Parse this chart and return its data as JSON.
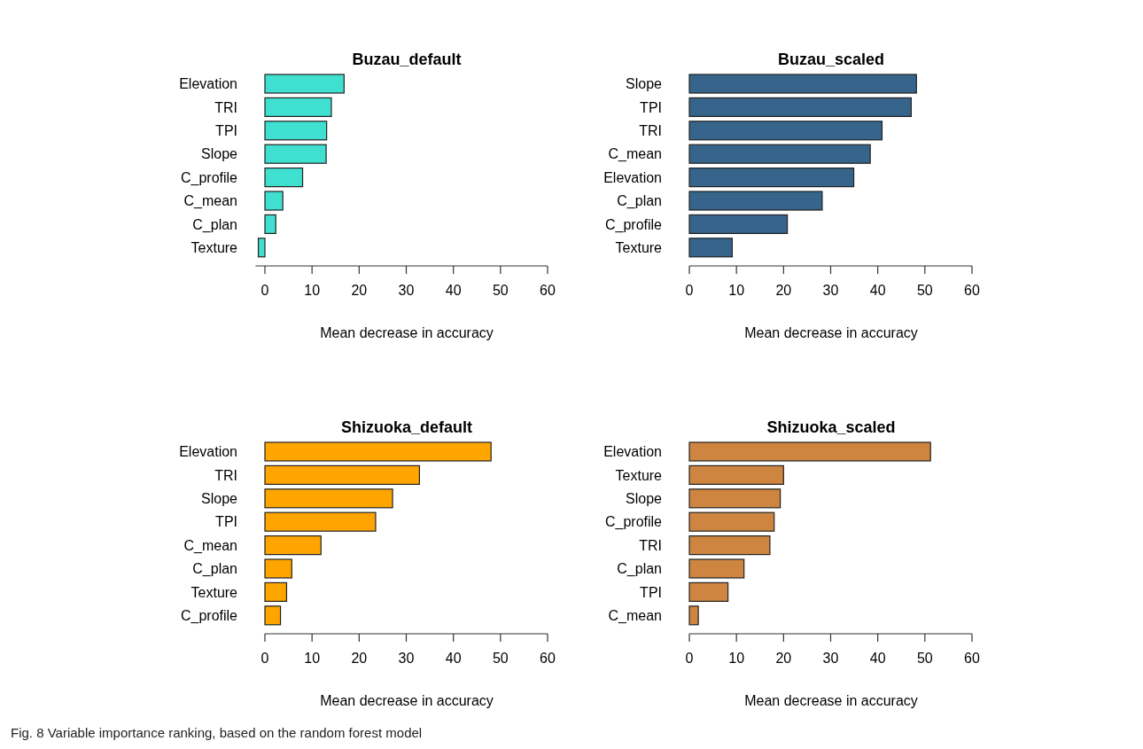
{
  "chart_data": [
    {
      "type": "bar",
      "orientation": "horizontal",
      "title": "Buzau_default",
      "xlabel": "Mean decrease in accuracy",
      "categories": [
        "Elevation",
        "TRI",
        "TPI",
        "Slope",
        "C_profile",
        "C_mean",
        "C_plan",
        "Texture"
      ],
      "values": [
        16.8,
        14.1,
        13.1,
        13.0,
        8.0,
        3.8,
        2.3,
        -1.4
      ],
      "color": "#40e0d0",
      "xlim": [
        -2,
        60
      ],
      "xticks": [
        0,
        10,
        20,
        30,
        40,
        50,
        60
      ],
      "grid": false
    },
    {
      "type": "bar",
      "orientation": "horizontal",
      "title": "Buzau_scaled",
      "xlabel": "Mean decrease in accuracy",
      "categories": [
        "Slope",
        "TPI",
        "TRI",
        "C_mean",
        "Elevation",
        "C_plan",
        "C_profile",
        "Texture"
      ],
      "values": [
        48.2,
        47.1,
        40.9,
        38.4,
        34.9,
        28.2,
        20.8,
        9.1
      ],
      "color": "#36648b",
      "xlim": [
        0,
        60
      ],
      "xticks": [
        0,
        10,
        20,
        30,
        40,
        50,
        60
      ],
      "grid": false
    },
    {
      "type": "bar",
      "orientation": "horizontal",
      "title": "Shizuoka_default",
      "xlabel": "Mean decrease in accuracy",
      "categories": [
        "Elevation",
        "TRI",
        "Slope",
        "TPI",
        "C_mean",
        "C_plan",
        "Texture",
        "C_profile"
      ],
      "values": [
        48.0,
        32.8,
        27.1,
        23.5,
        11.9,
        5.7,
        4.6,
        3.3
      ],
      "color": "#ffa500",
      "xlim": [
        0,
        60
      ],
      "xticks": [
        0,
        10,
        20,
        30,
        40,
        50,
        60
      ],
      "grid": false
    },
    {
      "type": "bar",
      "orientation": "horizontal",
      "title": "Shizuoka_scaled",
      "xlabel": "Mean decrease in accuracy",
      "categories": [
        "Elevation",
        "Texture",
        "Slope",
        "C_profile",
        "TRI",
        "C_plan",
        "TPI",
        "C_mean"
      ],
      "values": [
        51.2,
        20.0,
        19.3,
        18.0,
        17.1,
        11.6,
        8.2,
        1.9
      ],
      "color": "#cd853f",
      "xlim": [
        0,
        60
      ],
      "xticks": [
        0,
        10,
        20,
        30,
        40,
        50,
        60
      ],
      "grid": false
    },
    {
      "type": "other",
      "annotations": [
        "Fig. 8 Variable importance ranking, based on the random forest model"
      ]
    }
  ]
}
